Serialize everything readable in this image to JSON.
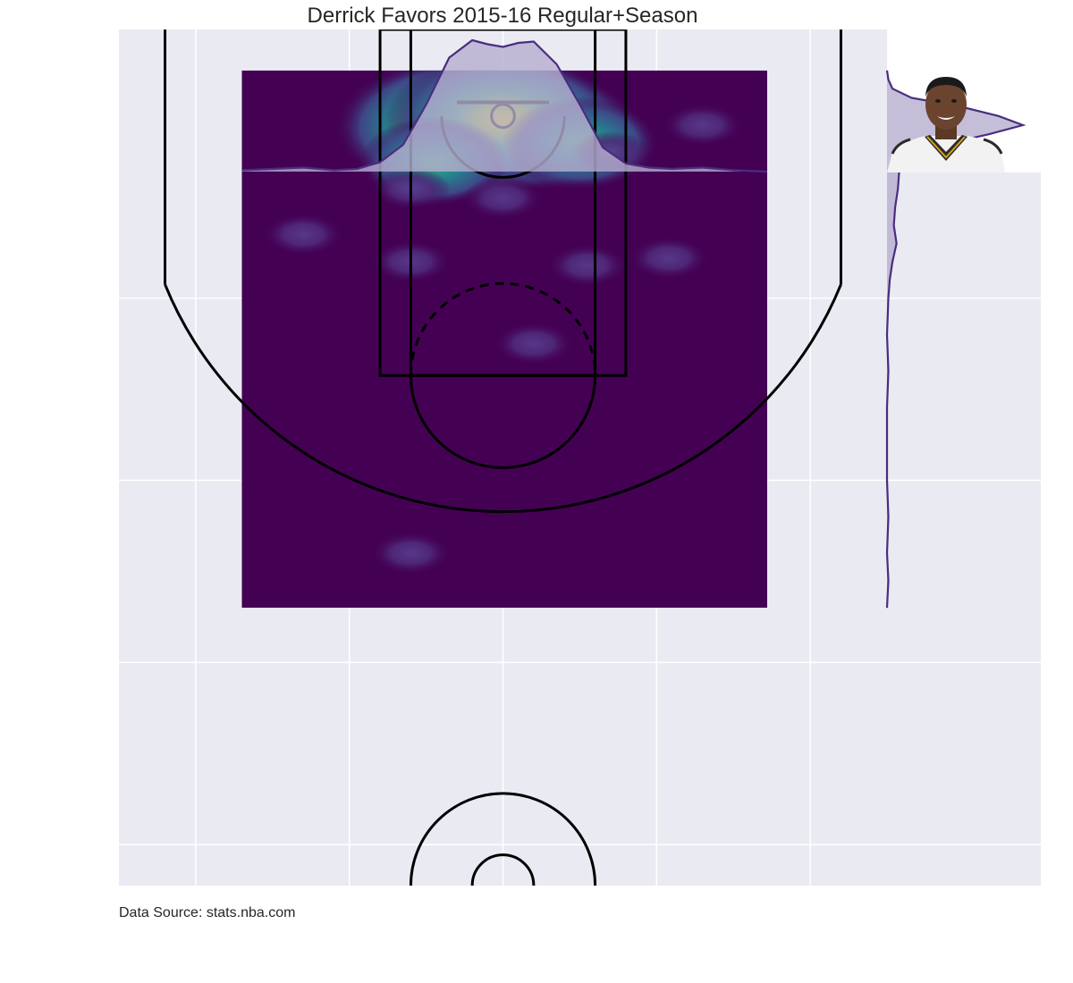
{
  "chart_data": {
    "type": "heatmap",
    "subtype": "kde-shot-chart-with-marginal-densities",
    "title": "Derrick Favors 2015-16 Regular+Season",
    "source_note": "Data Source: stats.nba.com",
    "xlim": [
      -250,
      250
    ],
    "ylim": [
      422.5,
      -47.5
    ],
    "grid": true,
    "background": "#eaeaf2",
    "colormap": "viridis",
    "kde_extent": {
      "x": [
        -170,
        172
      ],
      "y": [
        -25,
        270
      ]
    },
    "density_peaks": [
      {
        "x": -25,
        "y": 6,
        "density": 1.0
      },
      {
        "x": 20,
        "y": 8,
        "density": 0.7
      },
      {
        "x": 0,
        "y": 2,
        "density": 0.85
      },
      {
        "x": 50,
        "y": 15,
        "density": 0.35
      },
      {
        "x": -45,
        "y": 25,
        "density": 0.3
      },
      {
        "x": 0,
        "y": 45,
        "density": 0.12
      },
      {
        "x": 70,
        "y": 20,
        "density": 0.08
      },
      {
        "x": -60,
        "y": 40,
        "density": 0.07
      },
      {
        "x": -130,
        "y": 65,
        "density": 0.05
      },
      {
        "x": -60,
        "y": 80,
        "density": 0.05
      },
      {
        "x": 55,
        "y": 82,
        "density": 0.05
      },
      {
        "x": 108,
        "y": 78,
        "density": 0.05
      },
      {
        "x": 130,
        "y": 5,
        "density": 0.04
      },
      {
        "x": 20,
        "y": 125,
        "density": 0.04
      },
      {
        "x": -60,
        "y": 240,
        "density": 0.035
      }
    ],
    "marginal_x": {
      "x": [
        -170,
        -150,
        -130,
        -110,
        -95,
        -80,
        -65,
        -50,
        -35,
        -20,
        -10,
        0,
        10,
        20,
        35,
        50,
        65,
        80,
        95,
        110,
        130,
        150,
        172
      ],
      "density": [
        0.01,
        0.02,
        0.03,
        0.01,
        0.02,
        0.07,
        0.2,
        0.5,
        0.85,
        0.98,
        0.95,
        0.93,
        0.96,
        0.97,
        0.8,
        0.5,
        0.18,
        0.06,
        0.03,
        0.02,
        0.03,
        0.01,
        0.0
      ]
    },
    "marginal_y": {
      "y": [
        -25,
        -20,
        -15,
        -10,
        -5,
        0,
        5,
        10,
        15,
        20,
        30,
        40,
        50,
        60,
        70,
        80,
        90,
        100,
        120,
        140,
        160,
        180,
        200,
        220,
        240,
        255,
        270
      ],
      "density": [
        0.0,
        0.01,
        0.04,
        0.18,
        0.55,
        0.82,
        1.0,
        0.75,
        0.45,
        0.2,
        0.09,
        0.08,
        0.06,
        0.05,
        0.07,
        0.04,
        0.02,
        0.01,
        0.0,
        0.01,
        0.0,
        0.0,
        0.0,
        0.01,
        0.0,
        0.01,
        0.0
      ]
    },
    "line_color": "#4b2c7f",
    "fill_color": "#b7aecf",
    "court_color": "#000000"
  },
  "player_photo": {
    "name": "player-headshot"
  }
}
